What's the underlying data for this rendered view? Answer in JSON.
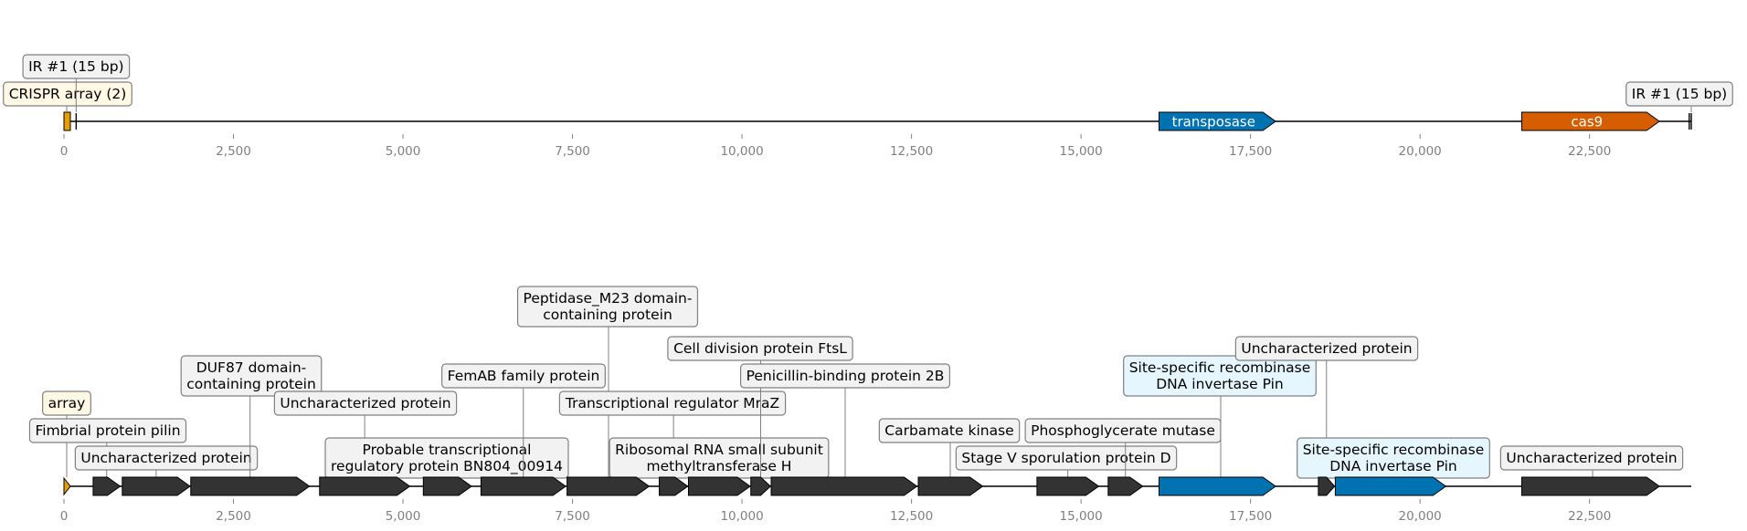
{
  "overview_track": {
    "axis_max": 24000,
    "ticks": [
      "0",
      "2,500",
      "5,000",
      "7,500",
      "10,000",
      "12,500",
      "15,000",
      "17,500",
      "20,000",
      "22,500"
    ],
    "features": [
      {
        "label": "CRISPR array (2)",
        "start": 0,
        "end": 100,
        "kind": "crispr",
        "color": "#E69F00",
        "box_bg": "#FFF8E5",
        "level": 0
      },
      {
        "label": "IR #1 (15 bp)",
        "start": 180,
        "end": 195,
        "kind": "ir",
        "box_bg": "#F2F2F2",
        "level": 1
      },
      {
        "label": "transposase",
        "start": 16150,
        "end": 17870,
        "kind": "gene",
        "color": "#0072B2",
        "inline": true
      },
      {
        "label": "cas9",
        "start": 21500,
        "end": 23530,
        "kind": "gene",
        "color": "#D55E00",
        "inline": true
      },
      {
        "label": "IR #1 (15 bp)",
        "start": 23970,
        "end": 23985,
        "kind": "ir",
        "box_bg": "#F2F2F2",
        "level": 0
      }
    ]
  },
  "detail_track": {
    "axis_max": 24000,
    "ticks": [
      "0",
      "2,500",
      "5,000",
      "7,500",
      "10,000",
      "12,500",
      "15,000",
      "17,500",
      "20,000",
      "22,500"
    ],
    "genes": [
      {
        "label": "array",
        "start": 0,
        "end": 90,
        "color": "#E69F00",
        "box_bg": "#FFF8E5",
        "level": 3
      },
      {
        "label": "Fimbrial protein pilin",
        "start": 430,
        "end": 830,
        "color": "#333333",
        "box_bg": "#F2F2F2",
        "level": 2
      },
      {
        "label": "Uncharacterized protein",
        "start": 860,
        "end": 1860,
        "color": "#333333",
        "box_bg": "#F2F2F2",
        "level": 1
      },
      {
        "label": "DUF87 domain-\ncontaining protein",
        "start": 1870,
        "end": 3620,
        "color": "#333333",
        "box_bg": "#F2F2F2",
        "level": 4
      },
      {
        "label": "Uncharacterized protein",
        "start": 3770,
        "end": 5100,
        "color": "#333333",
        "box_bg": "#F2F2F2",
        "level": 3
      },
      {
        "label": "Probable transcriptional\nregulatory protein BN804_00914",
        "start": 5300,
        "end": 6010,
        "color": "#333333",
        "box_bg": "#F2F2F2",
        "level": 1
      },
      {
        "label": "FemAB family protein",
        "start": 6150,
        "end": 7400,
        "color": "#333333",
        "box_bg": "#F2F2F2",
        "level": 4
      },
      {
        "label": "Peptidase_M23 domain-\ncontaining protein",
        "start": 7420,
        "end": 8630,
        "color": "#333333",
        "box_bg": "#F2F2F2",
        "level": 7
      },
      {
        "label": "Transcriptional regulator MraZ",
        "start": 8780,
        "end": 9200,
        "color": "#333333",
        "box_bg": "#F2F2F2",
        "level": 3
      },
      {
        "label": "Ribosomal RNA small subunit\nmethyltransferase H",
        "start": 9210,
        "end": 10120,
        "color": "#333333",
        "box_bg": "#F2F2F2",
        "level": 1
      },
      {
        "label": "Cell division protein FtsL",
        "start": 10130,
        "end": 10420,
        "color": "#333333",
        "box_bg": "#F2F2F2",
        "level": 5
      },
      {
        "label": "Penicillin-binding protein 2B",
        "start": 10430,
        "end": 12580,
        "color": "#333333",
        "box_bg": "#F2F2F2",
        "level": 4
      },
      {
        "label": "Carbamate kinase",
        "start": 12600,
        "end": 13550,
        "color": "#333333",
        "box_bg": "#F2F2F2",
        "level": 2
      },
      {
        "label": "Stage V sporulation protein D",
        "start": 14350,
        "end": 15260,
        "color": "#333333",
        "box_bg": "#F2F2F2",
        "level": 1
      },
      {
        "label": "Phosphoglycerate mutase",
        "start": 15400,
        "end": 15910,
        "color": "#333333",
        "box_bg": "#F2F2F2",
        "level": 2
      },
      {
        "label": "Site-specific recombinase\nDNA invertase Pin",
        "start": 16150,
        "end": 17870,
        "color": "#0072B2",
        "box_bg": "#E5F6FF",
        "level": 4
      },
      {
        "label": "Uncharacterized protein",
        "start": 18500,
        "end": 18740,
        "color": "#333333",
        "box_bg": "#F2F2F2",
        "level": 5
      },
      {
        "label": "Site-specific recombinase\nDNA invertase Pin",
        "start": 18750,
        "end": 20380,
        "color": "#0072B2",
        "box_bg": "#E5F6FF",
        "level": 1
      },
      {
        "label": "Uncharacterized protein",
        "start": 21500,
        "end": 23530,
        "color": "#333333",
        "box_bg": "#F2F2F2",
        "level": 1
      }
    ]
  }
}
